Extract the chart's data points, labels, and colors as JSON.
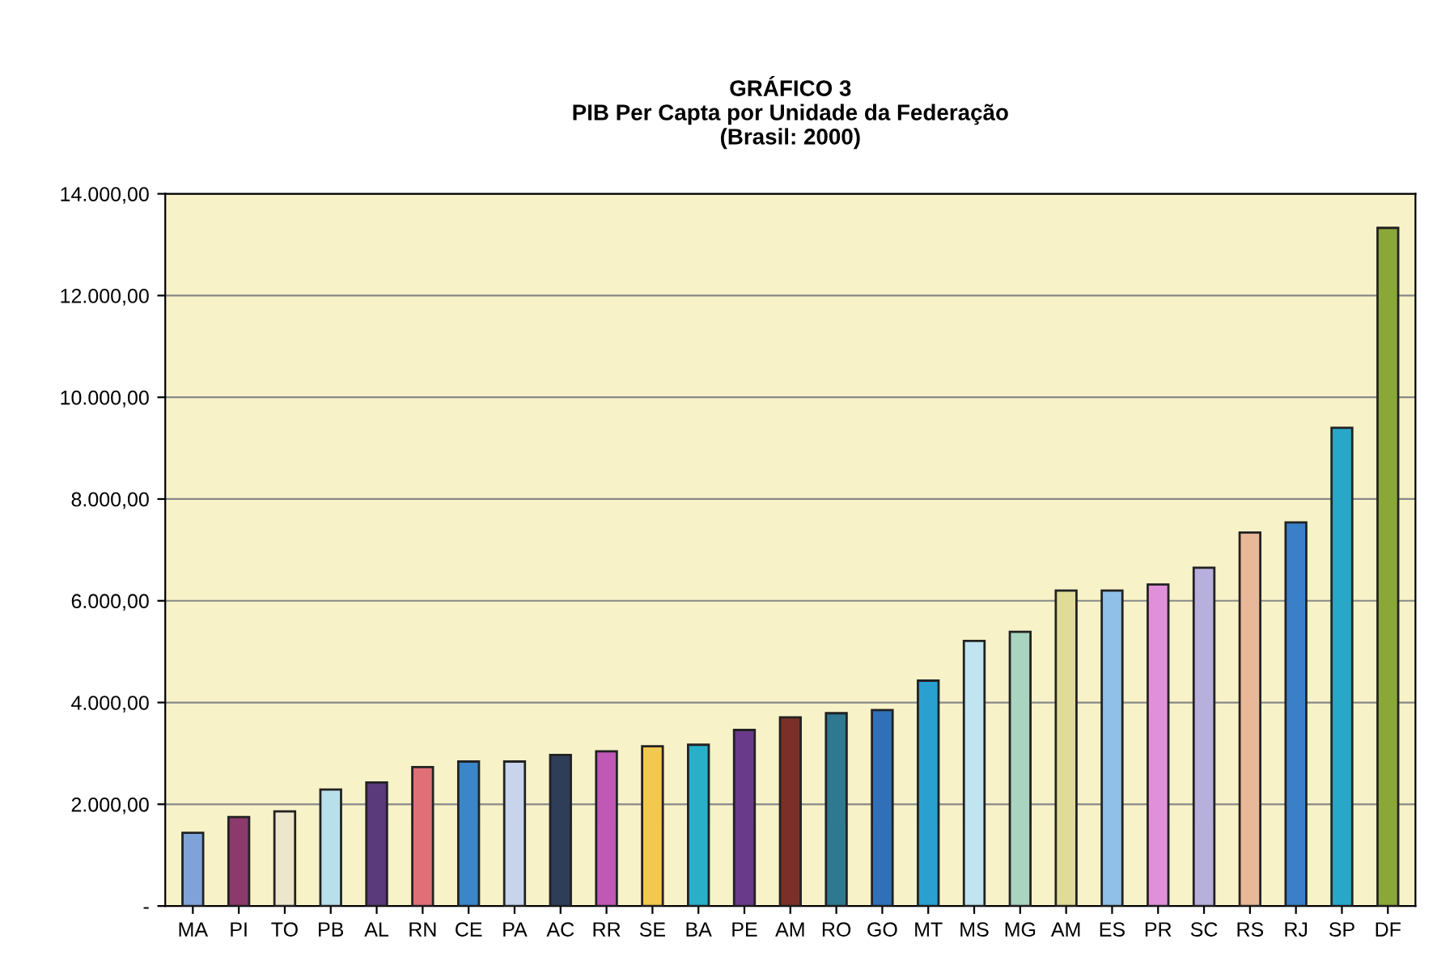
{
  "chart_data": {
    "type": "bar",
    "title": "GRÁFICO 3\nPIB Per Capta por Unidade da Federação\n(Brasil: 2000)",
    "categories": [
      "MA",
      "PI",
      "TO",
      "PB",
      "AL",
      "RN",
      "CE",
      "PA",
      "AC",
      "RR",
      "SE",
      "BA",
      "PE",
      "AM",
      "RO",
      "GO",
      "MT",
      "MS",
      "MG",
      "AM",
      "ES",
      "PR",
      "SC",
      "RS",
      "RJ",
      "SP",
      "DF"
    ],
    "values": [
      1440,
      1750,
      1860,
      2290,
      2430,
      2730,
      2840,
      2840,
      2970,
      3040,
      3140,
      3170,
      3460,
      3710,
      3790,
      3850,
      4430,
      5210,
      5390,
      6200,
      6200,
      6320,
      6650,
      7340,
      7540,
      9400,
      13330
    ],
    "colors": [
      "#7fa3d8",
      "#8b3a6b",
      "#ece6cc",
      "#b8e0ea",
      "#5a3a7a",
      "#e07078",
      "#3a86c8",
      "#c8d4ec",
      "#2e3e58",
      "#c058b8",
      "#f2c850",
      "#28b0c8",
      "#6a3a8a",
      "#7a3028",
      "#2e7890",
      "#3070b8",
      "#2aa0d0",
      "#c0e4f0",
      "#a8d4c0",
      "#e0dc98",
      "#90c0e8",
      "#e090d8",
      "#b8b0dc",
      "#e8b898",
      "#3a80c8",
      "#28a8c8",
      "#8aa838"
    ],
    "ylim": [
      0,
      14000
    ],
    "yticks": [
      {
        "value": 0,
        "label": "-"
      },
      {
        "value": 2000,
        "label": "2.000,00"
      },
      {
        "value": 4000,
        "label": "4.000,00"
      },
      {
        "value": 6000,
        "label": "6.000,00"
      },
      {
        "value": 8000,
        "label": "8.000,00"
      },
      {
        "value": 10000,
        "label": "10.000,00"
      },
      {
        "value": 12000,
        "label": "12.000,00"
      },
      {
        "value": 14000,
        "label": "14.000,00"
      }
    ],
    "grid": "y"
  }
}
